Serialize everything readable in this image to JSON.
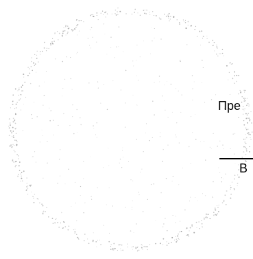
{
  "colors": {
    "background": "#ffffff",
    "dots": "#8c8c8c",
    "text": "#000000"
  },
  "labels": {
    "top": "Пре",
    "bottom": "В"
  }
}
